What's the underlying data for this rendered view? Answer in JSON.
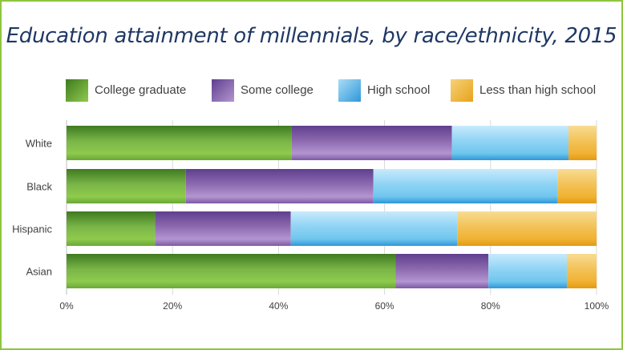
{
  "chart_data": {
    "type": "bar",
    "orientation": "horizontal",
    "stacked": true,
    "title": "Education attainment of millennials, by race/ethnicity, 2015",
    "categories": [
      "White",
      "Black",
      "Hispanic",
      "Asian"
    ],
    "series": [
      {
        "name": "College graduate",
        "values": [
          42.5,
          22.5,
          16.7,
          62.1
        ],
        "color": "#7ab648"
      },
      {
        "name": "Some college",
        "values": [
          30.2,
          35.4,
          25.6,
          17.5
        ],
        "color": "#8e6bb0"
      },
      {
        "name": "High school",
        "values": [
          22.0,
          34.8,
          31.4,
          14.8
        ],
        "color": "#6fc6ee"
      },
      {
        "name": "Less than high school",
        "values": [
          5.3,
          7.3,
          26.3,
          5.6
        ],
        "color": "#f0b232"
      }
    ],
    "xlim": [
      0,
      100
    ],
    "xticks": [
      "0%",
      "20%",
      "40%",
      "60%",
      "80%",
      "100%"
    ],
    "grid": true,
    "legend_position": "top"
  }
}
